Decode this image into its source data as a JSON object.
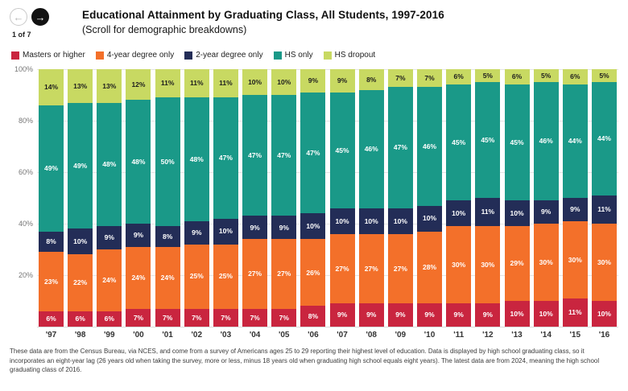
{
  "header": {
    "pagination": "1 of 7",
    "title": "Educational Attainment by Graduating Class, All Students, 1997-2016",
    "subtitle": "(Scroll for demographic breakdowns)",
    "prev_icon": "←",
    "next_icon": "→"
  },
  "chart_data": {
    "type": "bar",
    "stacked": true,
    "title": "Educational Attainment by Graduating Class, All Students, 1997-2016",
    "xlabel": "",
    "ylabel": "",
    "ylim": [
      0,
      100
    ],
    "grid": true,
    "legend_position": "top",
    "y_ticks": [
      {
        "value": 100,
        "label": "100%"
      },
      {
        "value": 80,
        "label": "80%"
      },
      {
        "value": 60,
        "label": "60%"
      },
      {
        "value": 40,
        "label": "40%"
      },
      {
        "value": 20,
        "label": "20%"
      }
    ],
    "categories": [
      "'97",
      "'98",
      "'99",
      "'00",
      "'01",
      "'02",
      "'03",
      "'04",
      "'05",
      "'06",
      "'07",
      "'08",
      "'09",
      "'10",
      "'11",
      "'12",
      "'13",
      "'14",
      "'15",
      "'16"
    ],
    "series": [
      {
        "name": "Masters or higher",
        "color": "#c9253f",
        "label_color": "#ffffff",
        "values": [
          6,
          6,
          6,
          7,
          7,
          7,
          7,
          7,
          7,
          8,
          9,
          9,
          9,
          9,
          9,
          9,
          10,
          10,
          11,
          10
        ]
      },
      {
        "name": "4-year degree only",
        "color": "#f3702a",
        "label_color": "#ffffff",
        "values": [
          23,
          22,
          24,
          24,
          24,
          25,
          25,
          27,
          27,
          26,
          27,
          27,
          27,
          28,
          30,
          30,
          29,
          30,
          30,
          30
        ]
      },
      {
        "name": "2-year degree only",
        "color": "#232d57",
        "label_color": "#ffffff",
        "values": [
          8,
          10,
          9,
          9,
          8,
          9,
          10,
          9,
          9,
          10,
          10,
          10,
          10,
          10,
          10,
          11,
          10,
          9,
          9,
          11
        ]
      },
      {
        "name": "HS only",
        "color": "#1a9988",
        "label_color": "#ffffff",
        "values": [
          49,
          49,
          48,
          48,
          50,
          48,
          47,
          47,
          47,
          47,
          45,
          46,
          47,
          46,
          45,
          45,
          45,
          46,
          44,
          44
        ]
      },
      {
        "name": "HS dropout",
        "color": "#c8d962",
        "label_color": "#1d1d1d",
        "values": [
          14,
          13,
          13,
          12,
          11,
          11,
          11,
          10,
          10,
          9,
          9,
          8,
          7,
          7,
          6,
          5,
          6,
          5,
          6,
          5
        ]
      }
    ]
  },
  "footer": {
    "note": "These data are from the Census Bureau, via NCES, and come from a survey of Americans ages 25 to 29 reporting their highest level of education. Data is displayed by high school graduating class, so it incorporates an eight-year lag (26 years old when taking the survey, more or less, minus 18 years old when graduating high school equals eight years). The latest data are from 2024, meaning the high school graduating class of 2016."
  }
}
